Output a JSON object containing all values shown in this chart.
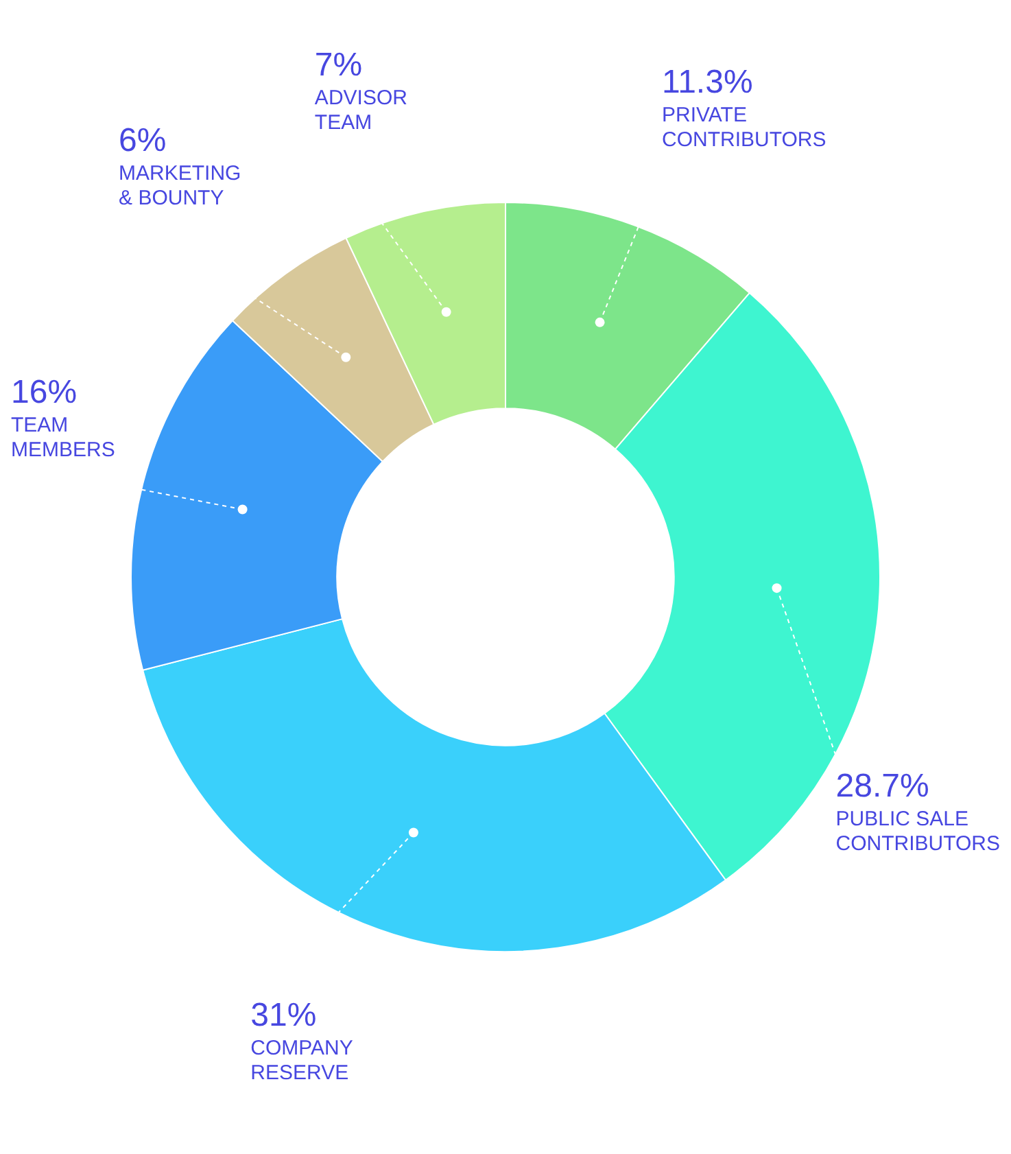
{
  "chart_data": {
    "type": "donut",
    "categories": [
      "PRIVATE CONTRIBUTORS",
      "PUBLIC SALE CONTRIBUTORS",
      "COMPANY RESERVE",
      "TEAM MEMBERS",
      "MARKETING & BOUNTY",
      "ADVISOR TEAM"
    ],
    "values": [
      11.3,
      28.7,
      31,
      16,
      6,
      7
    ],
    "value_labels": [
      "11.3%",
      "28.7%",
      "31%",
      "16%",
      "6%",
      "7%"
    ],
    "colors": [
      "#7de58a",
      "#3ef5d0",
      "#3ad0fb",
      "#3a9cf8",
      "#d8c89a",
      "#b5ee8e"
    ],
    "legend": false
  }
}
